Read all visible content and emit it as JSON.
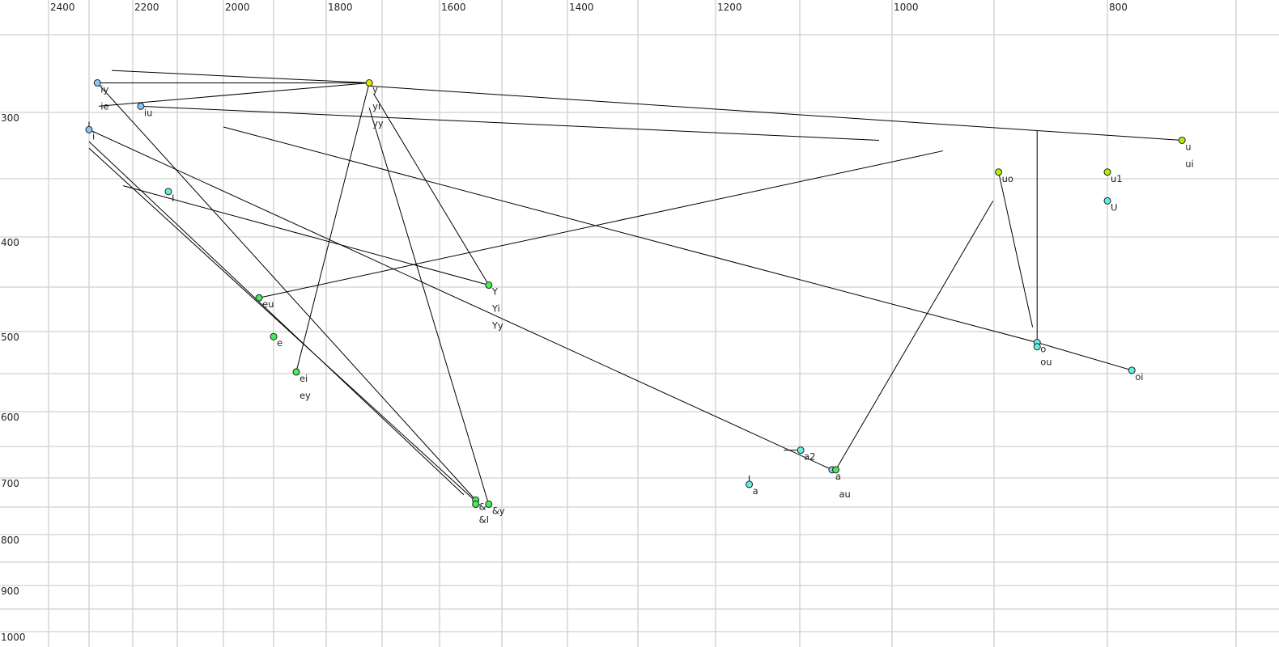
{
  "chart_data": {
    "type": "scatter",
    "title": "",
    "xlabel": "",
    "ylabel": "",
    "x_axis": {
      "reversed": true,
      "scale": "auditory (bark-like)",
      "ticks": [
        2400,
        2200,
        2000,
        1800,
        1600,
        1400,
        1200,
        1000,
        800
      ],
      "grid_step": 100
    },
    "y_axis": {
      "reversed": true,
      "scale": "auditory (bark-like)",
      "ticks": [
        300,
        400,
        500,
        600,
        700,
        800,
        900,
        1000
      ],
      "grid_step": 50
    },
    "grid": true,
    "colors": {
      "blue": "#8cc4f4",
      "cyan": "#66eedd",
      "green": "#44ee55",
      "lime": "#b4ee00",
      "yellow": "#dde800"
    },
    "points": [
      {
        "labels": [
          "iy",
          "ie"
        ],
        "f2": 2281,
        "f1": 281,
        "color": "blue"
      },
      {
        "labels": [
          "iu"
        ],
        "f2": 2182,
        "f1": 296,
        "color": "blue"
      },
      {
        "labels": [
          "i"
        ],
        "f2": 2300,
        "f1": 313,
        "color": "blue"
      },
      {
        "labels": [
          "I"
        ],
        "f2": 2120,
        "f1": 361,
        "color": "cyan"
      },
      {
        "labels": [
          "y",
          "yi",
          "yy"
        ],
        "f2": 1723,
        "f1": 281,
        "color": "yellow"
      },
      {
        "labels": [
          "Y",
          "Yi",
          "Yy"
        ],
        "f2": 1521,
        "f1": 448,
        "color": "green"
      },
      {
        "labels": [
          "eu"
        ],
        "f2": 1929,
        "f1": 462,
        "color": "green"
      },
      {
        "labels": [
          "e"
        ],
        "f2": 1900,
        "f1": 506,
        "color": "green"
      },
      {
        "labels": [
          "ei",
          "ey"
        ],
        "f2": 1857,
        "f1": 548,
        "color": "green"
      },
      {
        "labels": [
          "&"
        ],
        "f2": 1542,
        "f1": 738,
        "color": "green"
      },
      {
        "labels": [
          "&I"
        ],
        "f2": 1542,
        "f1": 745,
        "color": "green"
      },
      {
        "labels": [
          "&y"
        ],
        "f2": 1521,
        "f1": 745,
        "color": "green"
      },
      {
        "labels": [
          "a2"
        ],
        "f2": 1099,
        "f1": 656,
        "color": "cyan"
      },
      {
        "labels": [
          "a"
        ],
        "f2": 1160,
        "f1": 711,
        "color": "cyan"
      },
      {
        "labels": [
          "a"
        ],
        "f2": 1065,
        "f1": 687,
        "color": "blue"
      },
      {
        "labels": [
          "au"
        ],
        "f2": 1061,
        "f1": 687,
        "color": "green"
      },
      {
        "labels": [
          "uo"
        ],
        "f2": 896,
        "f1": 345,
        "color": "lime"
      },
      {
        "labels": [
          "u",
          "ui"
        ],
        "f2": 742,
        "f1": 321,
        "color": "lime"
      },
      {
        "labels": [
          "u1"
        ],
        "f2": 800,
        "f1": 345,
        "color": "lime"
      },
      {
        "labels": [
          "U"
        ],
        "f2": 800,
        "f1": 369,
        "color": "cyan"
      },
      {
        "labels": [
          "o"
        ],
        "f2": 862,
        "f1": 513,
        "color": "cyan"
      },
      {
        "labels": [
          "ou"
        ],
        "f2": 862,
        "f1": 518,
        "color": "cyan"
      },
      {
        "labels": [
          "oi"
        ],
        "f2": 781,
        "f1": 546,
        "color": "cyan"
      }
    ],
    "trajectories": [
      [
        [
          2248,
          273
        ],
        [
          1723,
          281
        ]
      ],
      [
        [
          2281,
          281
        ],
        [
          1723,
          281
        ]
      ],
      [
        [
          2278,
          296
        ],
        [
          1723,
          281
        ]
      ],
      [
        [
          2182,
          296
        ],
        [
          1014,
          321
        ]
      ],
      [
        [
          1723,
          283
        ],
        [
          742,
          321
        ]
      ],
      [
        [
          2300,
          307
        ],
        [
          2300,
          313
        ]
      ],
      [
        [
          2300,
          313
        ],
        [
          1065,
          687
        ]
      ],
      [
        [
          2281,
          281
        ],
        [
          1542,
          738
        ]
      ],
      [
        [
          2300,
          322
        ],
        [
          1561,
          729
        ]
      ],
      [
        [
          2300,
          327
        ],
        [
          1535,
          747
        ]
      ],
      [
        [
          2222,
          356
        ],
        [
          1521,
          448
        ]
      ],
      [
        [
          2000,
          311
        ],
        [
          862,
          513
        ],
        [
          781,
          546
        ]
      ],
      [
        [
          1929,
          462
        ],
        [
          950,
          329
        ]
      ],
      [
        [
          1857,
          548
        ],
        [
          1723,
          281
        ]
      ],
      [
        [
          1723,
          297
        ],
        [
          1521,
          746
        ]
      ],
      [
        [
          1715,
          288
        ],
        [
          1521,
          448
        ]
      ],
      [
        [
          1119,
          656
        ],
        [
          1099,
          656
        ]
      ],
      [
        [
          1160,
          696
        ],
        [
          1160,
          711
        ]
      ],
      [
        [
          1061,
          687
        ],
        [
          901,
          369
        ]
      ],
      [
        [
          896,
          345
        ],
        [
          866,
          495
        ]
      ],
      [
        [
          862,
          314
        ],
        [
          862,
          513
        ]
      ]
    ]
  }
}
